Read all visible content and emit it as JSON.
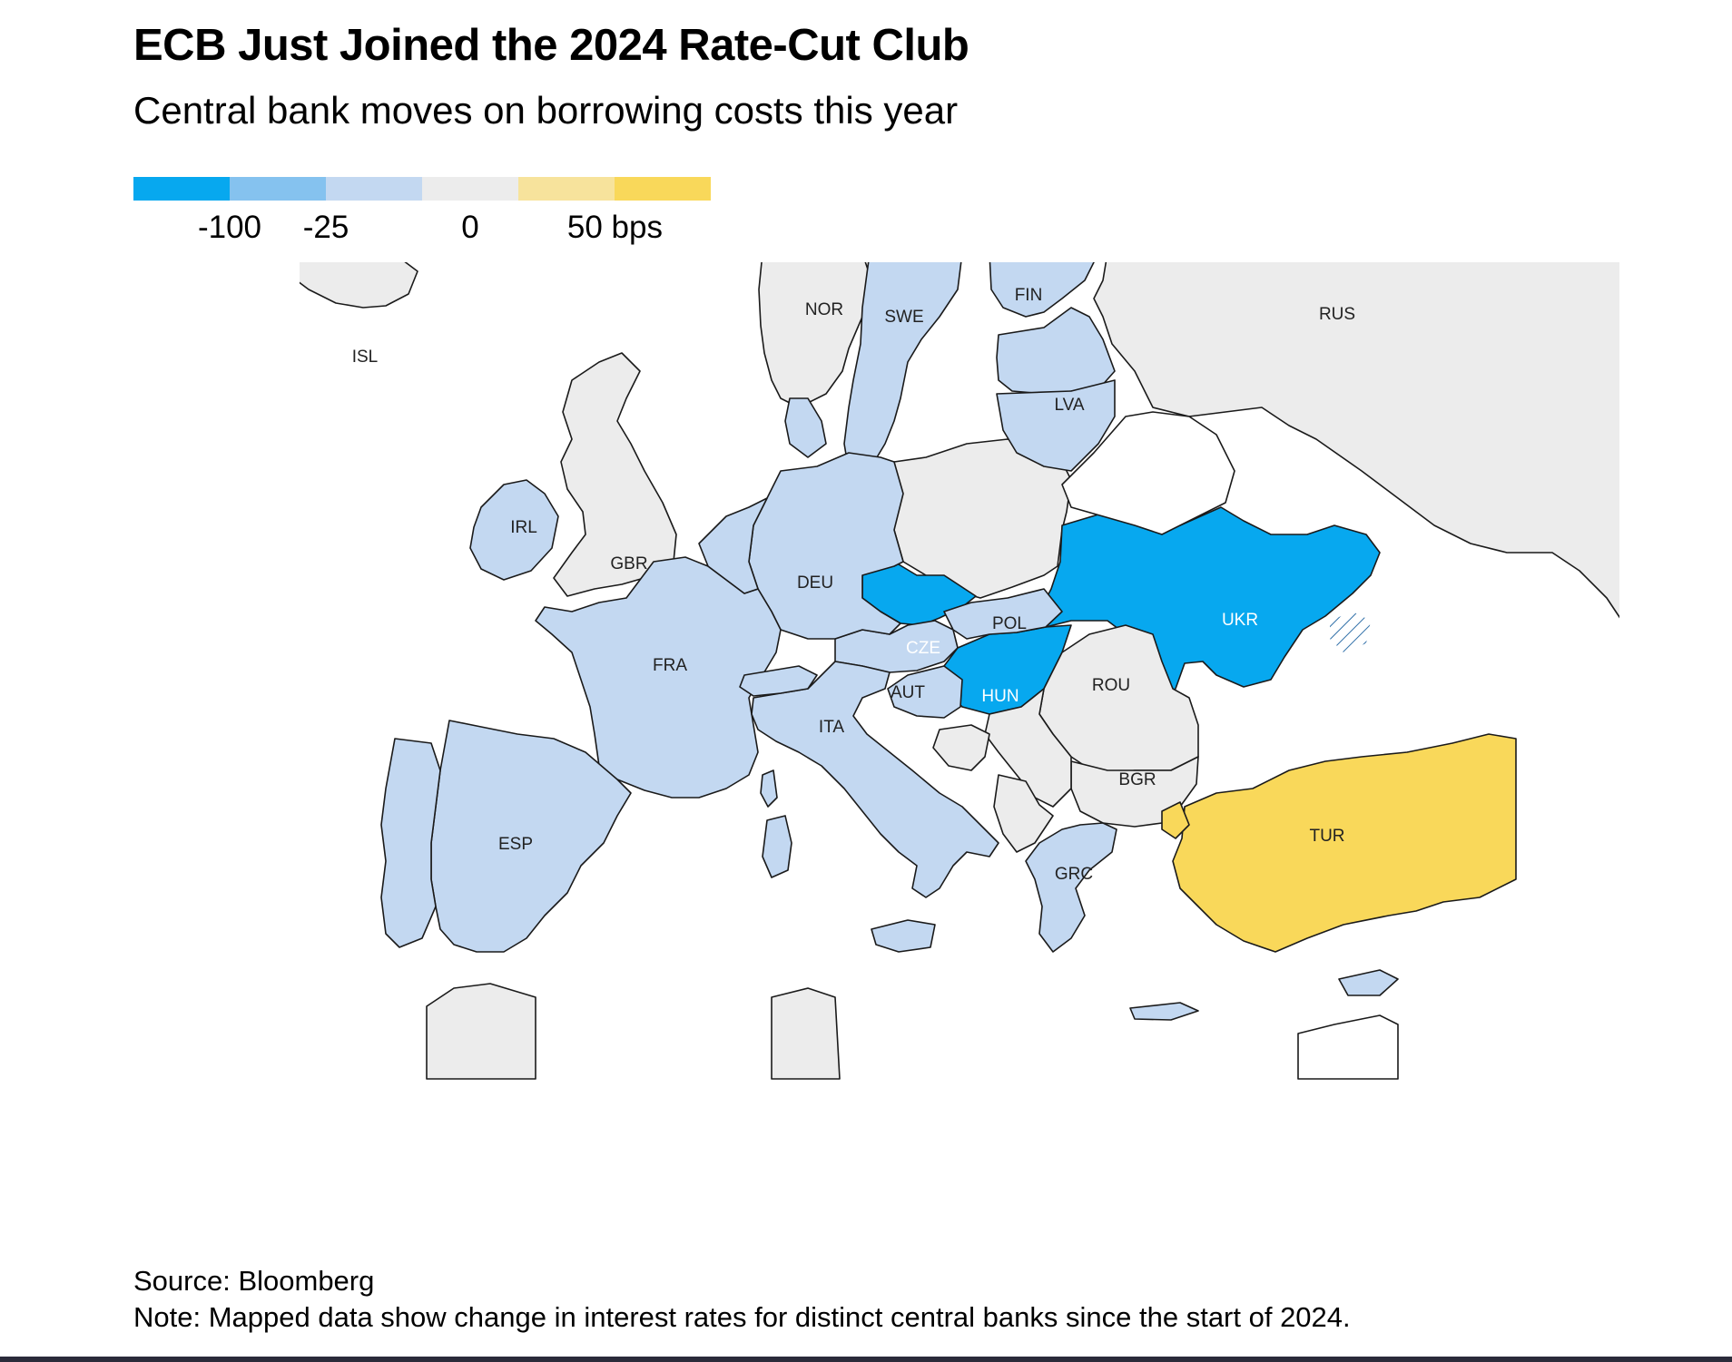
{
  "header": {
    "title": "ECB Just Joined the 2024 Rate-Cut Club",
    "subtitle": "Central bank moves on borrowing costs this year"
  },
  "legend": {
    "colors": [
      "#07a8ef",
      "#85c2ef",
      "#c3d8f1",
      "#ececec",
      "#f7e39c",
      "#f9d85a"
    ],
    "ticks": [
      {
        "label": "-100",
        "boundary": 1
      },
      {
        "label": "-25",
        "boundary": 2
      },
      {
        "label": "0",
        "boundary": 3.5
      },
      {
        "label": "50 bps",
        "boundary": 5.5
      }
    ]
  },
  "map": {
    "countries": [
      {
        "code": "ISL",
        "label": "ISL",
        "category": "neutral"
      },
      {
        "code": "NOR",
        "label": "NOR",
        "category": "neutral"
      },
      {
        "code": "SWE",
        "label": "SWE",
        "category": "cut-small"
      },
      {
        "code": "FIN",
        "label": "FIN",
        "category": "cut-small"
      },
      {
        "code": "RUS",
        "label": "RUS",
        "category": "neutral"
      },
      {
        "code": "LVA",
        "label": "LVA",
        "category": "cut-small"
      },
      {
        "code": "IRL",
        "label": "IRL",
        "category": "cut-small"
      },
      {
        "code": "GBR",
        "label": "GBR",
        "category": "neutral"
      },
      {
        "code": "POL",
        "label": "POL",
        "category": "neutral"
      },
      {
        "code": "DEU",
        "label": "DEU",
        "category": "cut-small"
      },
      {
        "code": "UKR",
        "label": "UKR",
        "category": "cut-large"
      },
      {
        "code": "CZE",
        "label": "CZE",
        "category": "cut-large"
      },
      {
        "code": "AUT",
        "label": "AUT",
        "category": "cut-small"
      },
      {
        "code": "HUN",
        "label": "HUN",
        "category": "cut-large"
      },
      {
        "code": "FRA",
        "label": "FRA",
        "category": "cut-small"
      },
      {
        "code": "ROU",
        "label": "ROU",
        "category": "neutral"
      },
      {
        "code": "ITA",
        "label": "ITA",
        "category": "cut-small"
      },
      {
        "code": "BGR",
        "label": "BGR",
        "category": "neutral"
      },
      {
        "code": "TUR",
        "label": "TUR",
        "category": "hike"
      },
      {
        "code": "ESP",
        "label": "ESP",
        "category": "cut-small"
      },
      {
        "code": "GRC",
        "label": "GRC",
        "category": "cut-small"
      }
    ],
    "category_colors": {
      "cut-large": "#07a8ef",
      "cut-small": "#c3d8f1",
      "neutral": "#ececec",
      "hike": "#f9d85a",
      "no-data": "#ffffff"
    }
  },
  "footer": {
    "source": "Source: Bloomberg",
    "note": "Note: Mapped data show change in interest rates for distinct central banks since the start of 2024."
  }
}
